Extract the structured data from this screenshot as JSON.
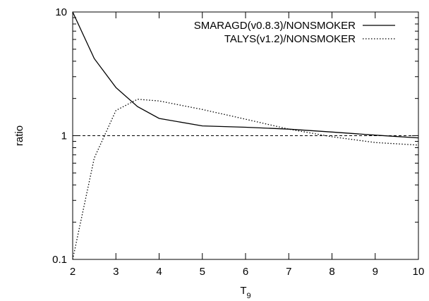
{
  "chart_data": {
    "type": "line",
    "xlabel": "T",
    "xlabel_sub": "9",
    "ylabel": "ratio",
    "xlim": [
      2,
      10
    ],
    "ylim": [
      0.1,
      10
    ],
    "yscale": "log",
    "grid": false,
    "legend_position": "top-right",
    "x_ticks": [
      2,
      3,
      4,
      5,
      6,
      7,
      8,
      9,
      10
    ],
    "x_tick_labels": [
      "2",
      "3",
      "4",
      "5",
      "6",
      "7",
      "8",
      "9",
      "10"
    ],
    "y_ticks": [
      0.1,
      1,
      10
    ],
    "y_tick_labels": [
      "0.1",
      "1",
      "10"
    ],
    "reference_line": {
      "y": 1,
      "style": "dashed"
    },
    "series": [
      {
        "name": "SMARAGD(v0.8.3)/NONSMOKER",
        "style": "solid",
        "x": [
          2,
          2.5,
          3,
          3.5,
          4,
          5,
          6,
          7,
          8,
          9,
          10
        ],
        "y": [
          10,
          4.2,
          2.45,
          1.72,
          1.38,
          1.2,
          1.17,
          1.13,
          1.07,
          1.01,
          0.96
        ]
      },
      {
        "name": "TALYS(v1.2)/NONSMOKER",
        "style": "dotted",
        "x": [
          2,
          2.5,
          3,
          3.5,
          4,
          5,
          6,
          7,
          8,
          9,
          10
        ],
        "y": [
          0.1,
          0.66,
          1.6,
          1.97,
          1.91,
          1.63,
          1.36,
          1.13,
          0.98,
          0.88,
          0.84
        ]
      }
    ]
  }
}
